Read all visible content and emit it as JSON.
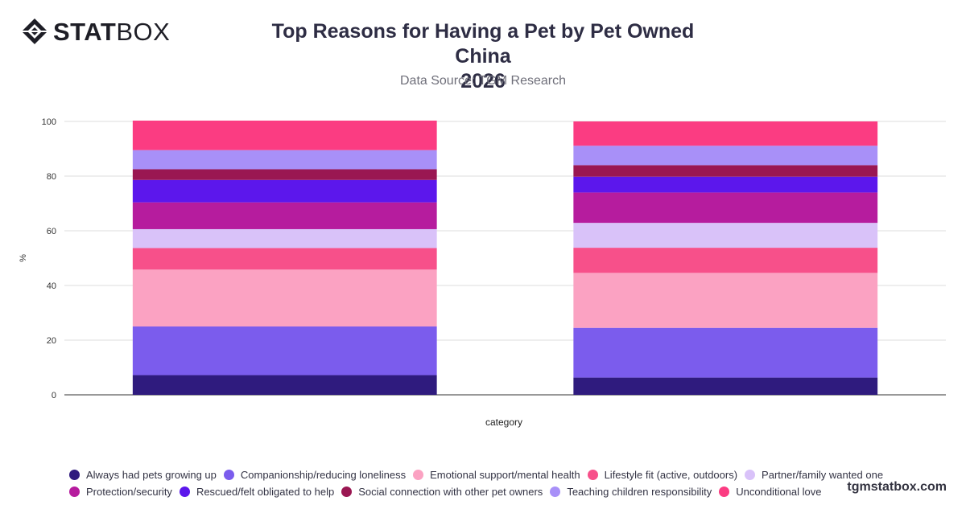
{
  "brand": {
    "logo_bold": "STAT",
    "logo_light": "BOX",
    "watermark": "tgmstatbox.com"
  },
  "header": {
    "title_line1": "Top Reasons for Having a Pet by Pet Owned China",
    "title_line2": "2026",
    "subtitle": "Data Source: TGM Research"
  },
  "chart_data": {
    "type": "bar",
    "stacked": true,
    "title": "Top Reasons for Having a Pet by Pet Owned China 2026",
    "subtitle": "Data Source: TGM Research",
    "xlabel": "category",
    "ylabel": "%",
    "ylim": [
      0,
      100
    ],
    "yticks": [
      0,
      20,
      40,
      60,
      80,
      100
    ],
    "grid": true,
    "legend_position": "bottom",
    "categories": [
      "",
      ""
    ],
    "series": [
      {
        "name": "Always had pets growing up",
        "color": "#2f1b7e",
        "values": [
          7.2,
          6.3
        ]
      },
      {
        "name": "Companionship/reducing loneliness",
        "color": "#7b5ced",
        "values": [
          17.8,
          18.2
        ]
      },
      {
        "name": "Emotional support/mental health",
        "color": "#fba2c2",
        "values": [
          20.8,
          20.1
        ]
      },
      {
        "name": "Lifestyle fit (active, outdoors)",
        "color": "#f7508a",
        "values": [
          7.9,
          9.2
        ]
      },
      {
        "name": "Partner/family wanted one",
        "color": "#d9c2f9",
        "values": [
          6.9,
          9.1
        ]
      },
      {
        "name": "Protection/security",
        "color": "#b61c9e",
        "values": [
          9.8,
          11.1
        ]
      },
      {
        "name": "Rescued/felt obligated to help",
        "color": "#5c17ec",
        "values": [
          8.2,
          5.8
        ]
      },
      {
        "name": "Social connection with other pet owners",
        "color": "#9a1752",
        "values": [
          3.9,
          4.2
        ]
      },
      {
        "name": "Teaching children responsibility",
        "color": "#a890f8",
        "values": [
          7.0,
          7.1
        ]
      },
      {
        "name": "Unconditional love",
        "color": "#fb3c82",
        "values": [
          10.8,
          8.9
        ]
      }
    ]
  }
}
